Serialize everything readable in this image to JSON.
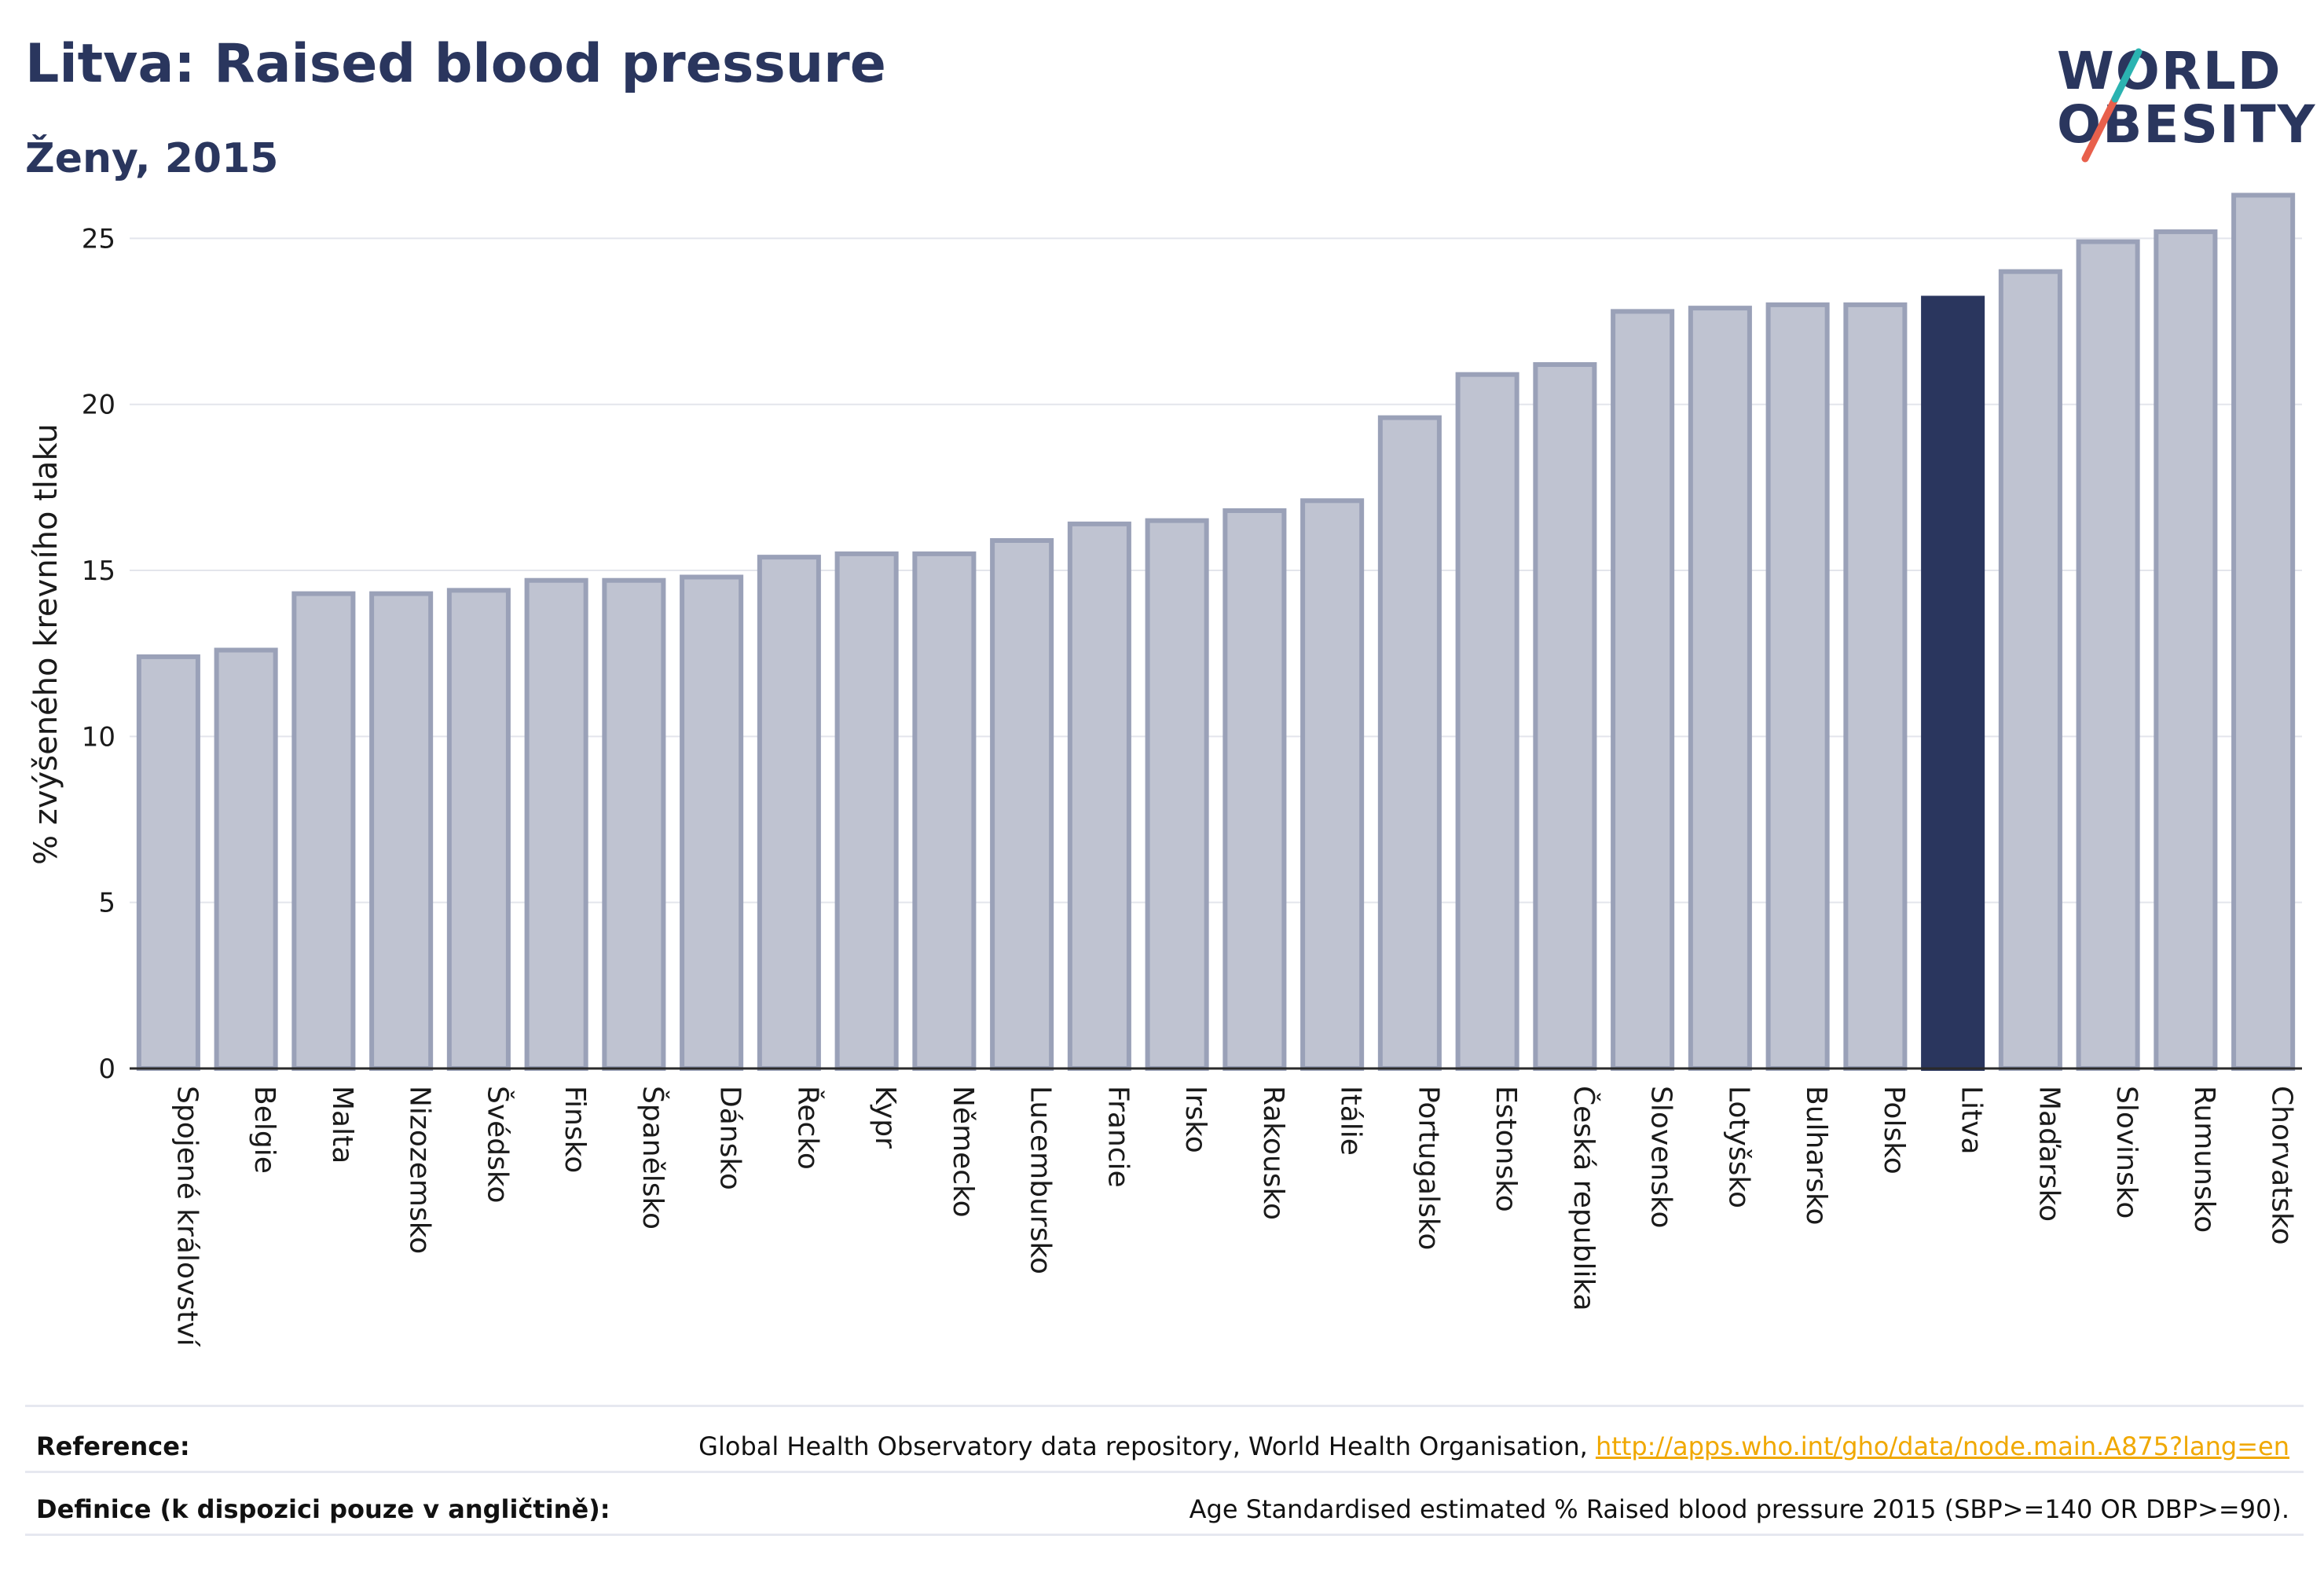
{
  "header": {
    "title": "Litva: Raised blood pressure",
    "subtitle": "Ženy, 2015"
  },
  "logo": {
    "line1": "WORLD",
    "line2": "OBESITY",
    "accent_colors": [
      "#e8604c",
      "#2bb3b1"
    ]
  },
  "chart_data": {
    "type": "bar",
    "ylabel": "% zvýšeného krevního tlaku",
    "xlabel": "",
    "ylim": [
      0,
      26.5
    ],
    "yticks": [
      0,
      5,
      10,
      15,
      20,
      25
    ],
    "grid": true,
    "highlight": "Litva",
    "colors": {
      "bar_fill": "#bfc3d1",
      "bar_stroke": "#9aa1b8",
      "highlight": "#2a365e"
    },
    "categories": [
      "Spojené království",
      "Belgie",
      "Malta",
      "Nizozemsko",
      "Švédsko",
      "Finsko",
      "Španělsko",
      "Dánsko",
      "Řecko",
      "Kypr",
      "Německo",
      "Lucembursko",
      "Francie",
      "Irsko",
      "Rakousko",
      "Itálie",
      "Portugalsko",
      "Estonsko",
      "Česká republika",
      "Slovensko",
      "Lotyšsko",
      "Bulharsko",
      "Polsko",
      "Litva",
      "Maďarsko",
      "Slovinsko",
      "Rumunsko",
      "Chorvatsko"
    ],
    "values": [
      12.4,
      12.6,
      14.3,
      14.3,
      14.4,
      14.7,
      14.7,
      14.8,
      15.4,
      15.5,
      15.5,
      15.9,
      16.4,
      16.5,
      16.8,
      17.1,
      19.6,
      20.9,
      21.2,
      22.8,
      22.9,
      23.0,
      23.0,
      23.2,
      24.0,
      24.9,
      25.2,
      26.3
    ]
  },
  "footer": {
    "reference_label": "Reference:",
    "reference_text": "Global Health Observatory data repository, World Health Organisation, ",
    "reference_link": "http://apps.who.int/gho/data/node.main.A875?lang=en",
    "definition_label": "Definice (k dispozici pouze v angličtině):",
    "definition_text": "Age Standardised estimated % Raised blood pressure 2015 (SBP>=140 OR DBP>=90)."
  }
}
